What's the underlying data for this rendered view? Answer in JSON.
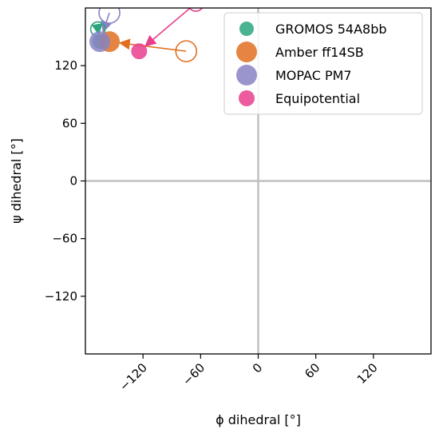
{
  "chart_data": {
    "type": "scatter",
    "xlabel": "ϕ dihedral [°]",
    "ylabel": "ψ dihedral [°]",
    "xlim": [
      -180,
      180
    ],
    "ylim": [
      -180,
      180
    ],
    "xticks": [
      -120,
      -60,
      0,
      60,
      120
    ],
    "yticks": [
      -120,
      -60,
      0,
      60,
      120
    ],
    "xtick_labels": [
      "−120",
      "−60",
      "0",
      "60",
      "120"
    ],
    "ytick_labels": [
      "−120",
      "−60",
      "0",
      "60",
      "120"
    ],
    "reference_lines": {
      "x": 0,
      "y": 0,
      "color": "#c0c0c0"
    },
    "legend_position": "top-right",
    "series": [
      {
        "name": "GROMOS 54A8bb",
        "color": "#2ca57f",
        "marker_size": "small",
        "start": {
          "phi": -167,
          "psi": 158
        },
        "end": {
          "phi": -165,
          "psi": 145
        }
      },
      {
        "name": "Amber ff14SB",
        "color": "#e07020",
        "marker_size": "large",
        "start": {
          "phi": -75,
          "psi": 135
        },
        "end": {
          "phi": -155,
          "psi": 145
        }
      },
      {
        "name": "MOPAC PM7",
        "color": "#8a82c4",
        "marker_size": "large",
        "start": {
          "phi": -155,
          "psi": 175
        },
        "end": {
          "phi": -165,
          "psi": 145
        }
      },
      {
        "name": "Equipotential",
        "color": "#e83e8c",
        "marker_size": "medium",
        "start": {
          "phi": -65,
          "psi": 185
        },
        "end": {
          "phi": -124,
          "psi": 135
        }
      }
    ]
  }
}
